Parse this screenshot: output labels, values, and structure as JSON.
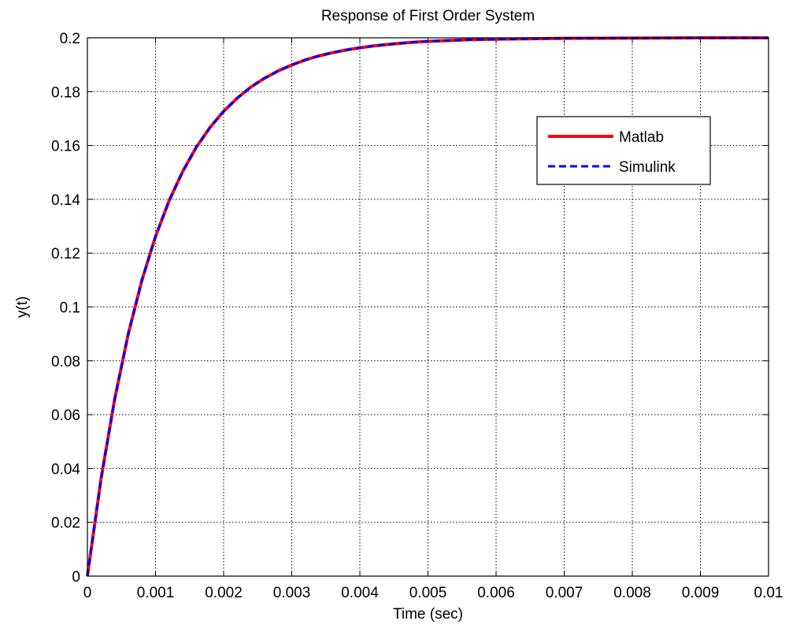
{
  "chart_data": {
    "type": "line",
    "title": "Response of First Order System",
    "xlabel": "Time (sec)",
    "ylabel": "y(t)",
    "xlim": [
      0,
      0.01
    ],
    "ylim": [
      0,
      0.2
    ],
    "grid": true,
    "legend_position": "upper-right",
    "x_ticks": [
      0,
      0.001,
      0.002,
      0.003,
      0.004,
      0.005,
      0.006,
      0.007,
      0.008,
      0.009,
      0.01
    ],
    "x_tick_labels": [
      "0",
      "0.001",
      "0.002",
      "0.003",
      "0.004",
      "0.005",
      "0.006",
      "0.007",
      "0.008",
      "0.009",
      "0.01"
    ],
    "y_ticks": [
      0,
      0.02,
      0.04,
      0.06,
      0.08,
      0.1,
      0.12,
      0.14,
      0.16,
      0.18,
      0.2
    ],
    "y_tick_labels": [
      "0",
      "0.02",
      "0.04",
      "0.06",
      "0.08",
      "0.1",
      "0.12",
      "0.14",
      "0.16",
      "0.18",
      "0.2"
    ],
    "x": [
      0,
      0.0002,
      0.0004,
      0.0006,
      0.0008,
      0.001,
      0.0012,
      0.0014,
      0.0016,
      0.0018,
      0.002,
      0.0022,
      0.0024,
      0.0026,
      0.0028,
      0.003,
      0.0032,
      0.0034,
      0.0036,
      0.0038,
      0.004,
      0.0042,
      0.0044,
      0.0046,
      0.0048,
      0.005,
      0.0052,
      0.0054,
      0.0056,
      0.0058,
      0.006,
      0.007,
      0.008,
      0.009,
      0.01
    ],
    "series": [
      {
        "name": "Matlab",
        "color": "#ff0000",
        "style": "solid",
        "values": [
          0,
          0.0361,
          0.0657,
          0.09,
          0.1099,
          0.1262,
          0.1395,
          0.1504,
          0.1594,
          0.1667,
          0.1727,
          0.1776,
          0.1817,
          0.185,
          0.1877,
          0.1899,
          0.1918,
          0.1933,
          0.1945,
          0.1955,
          0.1963,
          0.197,
          0.1975,
          0.198,
          0.1984,
          0.1987,
          0.1989,
          0.1991,
          0.1993,
          0.1994,
          0.1995,
          0.1998,
          0.1999,
          0.2,
          0.2
        ]
      },
      {
        "name": "Simulink",
        "color": "#0000ff",
        "style": "dashed",
        "values": [
          0,
          0.0361,
          0.0657,
          0.09,
          0.1099,
          0.1262,
          0.1395,
          0.1504,
          0.1594,
          0.1667,
          0.1727,
          0.1776,
          0.1817,
          0.185,
          0.1877,
          0.1899,
          0.1918,
          0.1933,
          0.1945,
          0.1955,
          0.1963,
          0.197,
          0.1975,
          0.198,
          0.1984,
          0.1987,
          0.1989,
          0.1991,
          0.1993,
          0.1994,
          0.1995,
          0.1998,
          0.1999,
          0.2,
          0.2
        ]
      }
    ]
  }
}
